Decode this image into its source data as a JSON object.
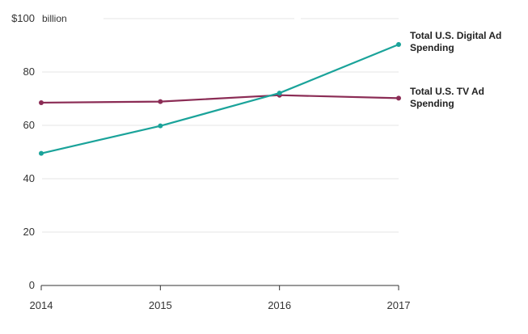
{
  "chart_data": {
    "type": "line",
    "title": "",
    "xlabel": "",
    "ylabel": "",
    "unit": "billion",
    "x": [
      2014,
      2015,
      2016,
      2017
    ],
    "xtick_labels": [
      "2014",
      "2015",
      "2016",
      "2017"
    ],
    "ytick_labels": [
      "$100",
      "80",
      "60",
      "40",
      "20",
      "0"
    ],
    "yticks": [
      100,
      80,
      60,
      40,
      20,
      0
    ],
    "ylim": [
      0,
      100
    ],
    "xlim": [
      2014,
      2017
    ],
    "grid": true,
    "series": [
      {
        "name": "Total U.S. Digital Ad Spending",
        "label_lines": [
          "Total U.S. Digital Ad",
          "Spending"
        ],
        "color": "#1aa39a",
        "values": [
          49.5,
          59.8,
          72.1,
          90.3
        ]
      },
      {
        "name": "Total U.S. TV Ad Spending",
        "label_lines": [
          "Total U.S. TV Ad",
          "Spending"
        ],
        "color": "#8b2c55",
        "values": [
          68.5,
          68.9,
          71.3,
          70.2
        ]
      }
    ]
  }
}
